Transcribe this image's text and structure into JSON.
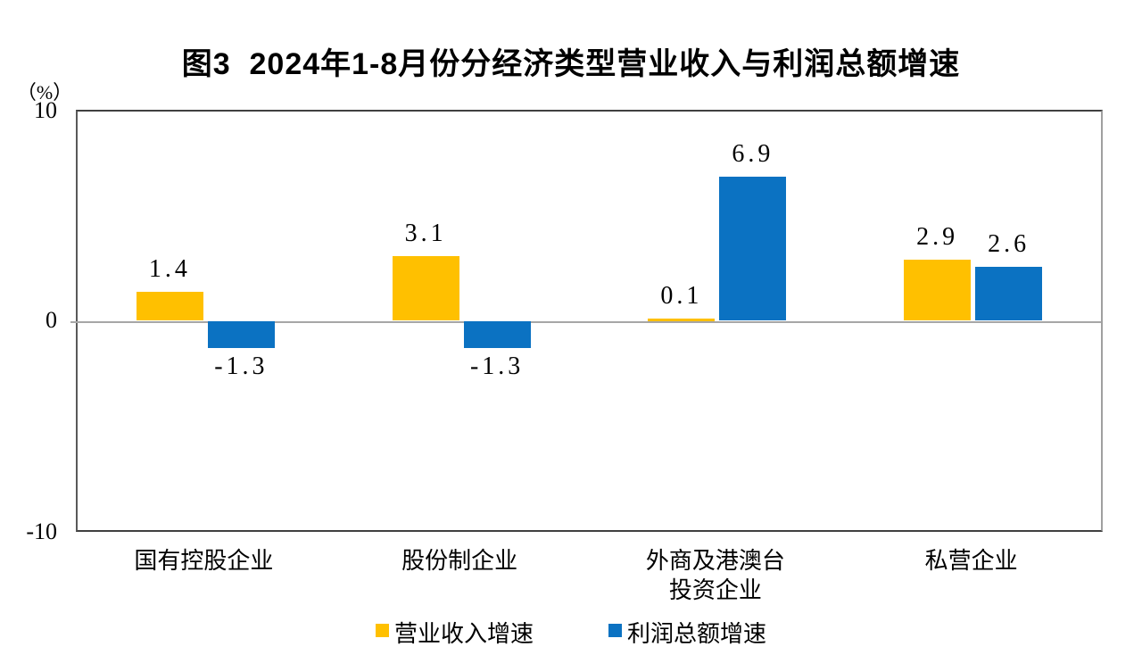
{
  "title": "图3  2024年1-8月份分经济类型营业收入与利润总额增速",
  "chart_data": {
    "type": "bar",
    "title": "图3 2024年1-8月份分经济类型营业收入与利润总额增速",
    "unit_label": "（%）",
    "categories": [
      "国有控股企业",
      "股份制企业",
      "外商及港澳台\n投资企业",
      "私营企业"
    ],
    "series": [
      {
        "name": "营业收入增速",
        "color": "#FFC000",
        "values": [
          1.4,
          3.1,
          0.1,
          2.9
        ]
      },
      {
        "name": "利润总额增速",
        "color": "#0B72C2",
        "values": [
          -1.3,
          -1.3,
          6.9,
          2.6
        ]
      }
    ],
    "value_labels": [
      [
        "1.4",
        "3.1",
        "0.1",
        "2.9"
      ],
      [
        "-1.3",
        "-1.3",
        "6.9",
        "2.6"
      ]
    ],
    "ylim": [
      -10,
      10
    ],
    "yticks": [
      "10",
      "0",
      "-10"
    ],
    "grid": false,
    "legend_position": "bottom",
    "zero_line_color": "#A6A6A6"
  }
}
